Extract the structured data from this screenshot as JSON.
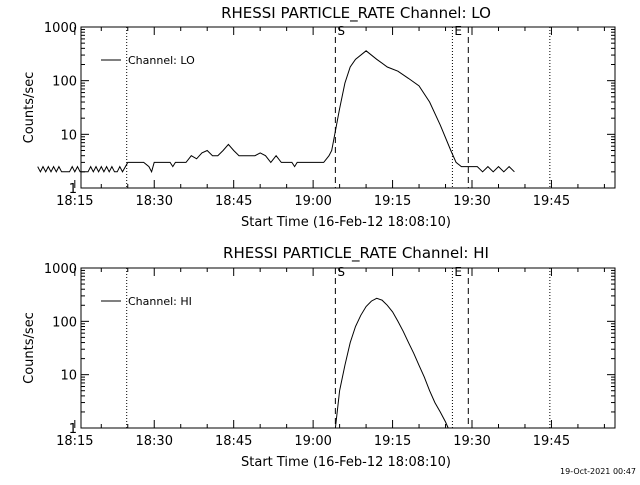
{
  "footer_timestamp": "19-Oct-2021 00:47",
  "chart_data": [
    {
      "type": "line",
      "title": "RHESSI PARTICLE_RATE Channel: LO",
      "xlabel": "Start Time (16-Feb-12 18:08:10)",
      "ylabel": "Counts/sec",
      "ylog": true,
      "ylim": [
        1,
        1000
      ],
      "xlim_min": [
        8.17,
        109
      ],
      "xticks_min": [
        7,
        22,
        37,
        52,
        67,
        82,
        97
      ],
      "xtick_labels": [
        "18:15",
        "18:30",
        "18:45",
        "19:00",
        "19:15",
        "19:30",
        "19:45"
      ],
      "yticks": [
        1,
        10,
        100,
        1000
      ],
      "ytick_labels": [
        "1",
        "10",
        "100",
        "1000"
      ],
      "legend": "Channel: LO",
      "vlines": [
        {
          "x_min": 16.8,
          "style": "dotted",
          "label": ""
        },
        {
          "x_min": 56.2,
          "style": "dashed",
          "label": "S"
        },
        {
          "x_min": 78.3,
          "style": "dotted",
          "label": "E"
        },
        {
          "x_min": 81.3,
          "style": "dashed",
          "label": ""
        },
        {
          "x_min": 96.7,
          "style": "dotted",
          "label": ""
        }
      ],
      "series": [
        {
          "name": "Channel: LO",
          "x_min": [
            0,
            0.5,
            1,
            1.5,
            2,
            2.5,
            3,
            3.5,
            4,
            4.5,
            5,
            5.5,
            6,
            6.5,
            7,
            7.5,
            8,
            8.5,
            9,
            9.5,
            10,
            10.5,
            11,
            11.5,
            12,
            12.5,
            13,
            13.5,
            14,
            14.5,
            15,
            15.5,
            16,
            17,
            18,
            19,
            20,
            21,
            21.5,
            22,
            23,
            24,
            25,
            25.5,
            26,
            27,
            28,
            29,
            30,
            31,
            32,
            33,
            34,
            35,
            36,
            37,
            38,
            39,
            40,
            41,
            42,
            43,
            44,
            45,
            46,
            47,
            48,
            48.5,
            49,
            50,
            51,
            52,
            53,
            54,
            55,
            55.5,
            56,
            57,
            58,
            59,
            60,
            62,
            64,
            66,
            68,
            70,
            72,
            74,
            76,
            78,
            79,
            80,
            81,
            82,
            83,
            84,
            85,
            86,
            87,
            88,
            89,
            90
          ],
          "values": [
            2.5,
            2,
            2.5,
            2,
            2.5,
            2,
            2.5,
            2,
            2.5,
            2,
            2,
            2,
            2,
            2.5,
            2,
            2.5,
            2,
            2,
            2,
            2,
            2.5,
            2,
            2.5,
            2,
            2.5,
            2,
            2.5,
            2,
            2.5,
            2,
            2,
            2.5,
            2,
            3,
            3,
            3,
            3,
            2.5,
            2,
            3,
            3,
            3,
            3,
            2.5,
            3,
            3,
            3,
            4,
            3.5,
            4.5,
            5,
            4,
            4,
            5,
            6.5,
            5,
            4,
            4,
            4,
            4,
            4.5,
            4,
            3,
            4,
            3,
            3,
            3,
            2.5,
            3,
            3,
            3,
            3,
            3,
            3,
            4,
            5,
            9,
            30,
            90,
            180,
            250,
            360,
            250,
            180,
            150,
            110,
            80,
            40,
            15,
            5,
            3,
            2.5,
            2.5,
            2.5,
            2.5,
            2,
            2.5,
            2,
            2.5,
            2,
            2.5,
            2
          ]
        }
      ]
    },
    {
      "type": "line",
      "title": "RHESSI PARTICLE_RATE Channel: HI",
      "xlabel": "Start Time (16-Feb-12 18:08:10)",
      "ylabel": "Counts/sec",
      "ylog": true,
      "ylim": [
        1,
        1000
      ],
      "xlim_min": [
        8.17,
        109
      ],
      "xticks_min": [
        7,
        22,
        37,
        52,
        67,
        82,
        97
      ],
      "xtick_labels": [
        "18:15",
        "18:30",
        "18:45",
        "19:00",
        "19:15",
        "19:30",
        "19:45"
      ],
      "yticks": [
        1,
        10,
        100,
        1000
      ],
      "ytick_labels": [
        "1",
        "10",
        "100",
        "1000"
      ],
      "legend": "Channel: HI",
      "vlines": [
        {
          "x_min": 16.8,
          "style": "dotted",
          "label": ""
        },
        {
          "x_min": 56.2,
          "style": "dashed",
          "label": "S"
        },
        {
          "x_min": 78.3,
          "style": "dotted",
          "label": "E"
        },
        {
          "x_min": 81.3,
          "style": "dashed",
          "label": ""
        },
        {
          "x_min": 96.7,
          "style": "dotted",
          "label": ""
        }
      ],
      "series": [
        {
          "name": "Channel: HI",
          "x_min": [
            56.2,
            57,
            58,
            59,
            60,
            61,
            62,
            63,
            64,
            65,
            66,
            67,
            68,
            69,
            70,
            71,
            72,
            73,
            74,
            75,
            76,
            77,
            77.5
          ],
          "values": [
            1,
            5,
            15,
            40,
            80,
            130,
            190,
            240,
            270,
            250,
            200,
            150,
            100,
            65,
            40,
            25,
            15,
            9,
            5,
            3,
            2,
            1.3,
            1
          ]
        }
      ]
    }
  ]
}
